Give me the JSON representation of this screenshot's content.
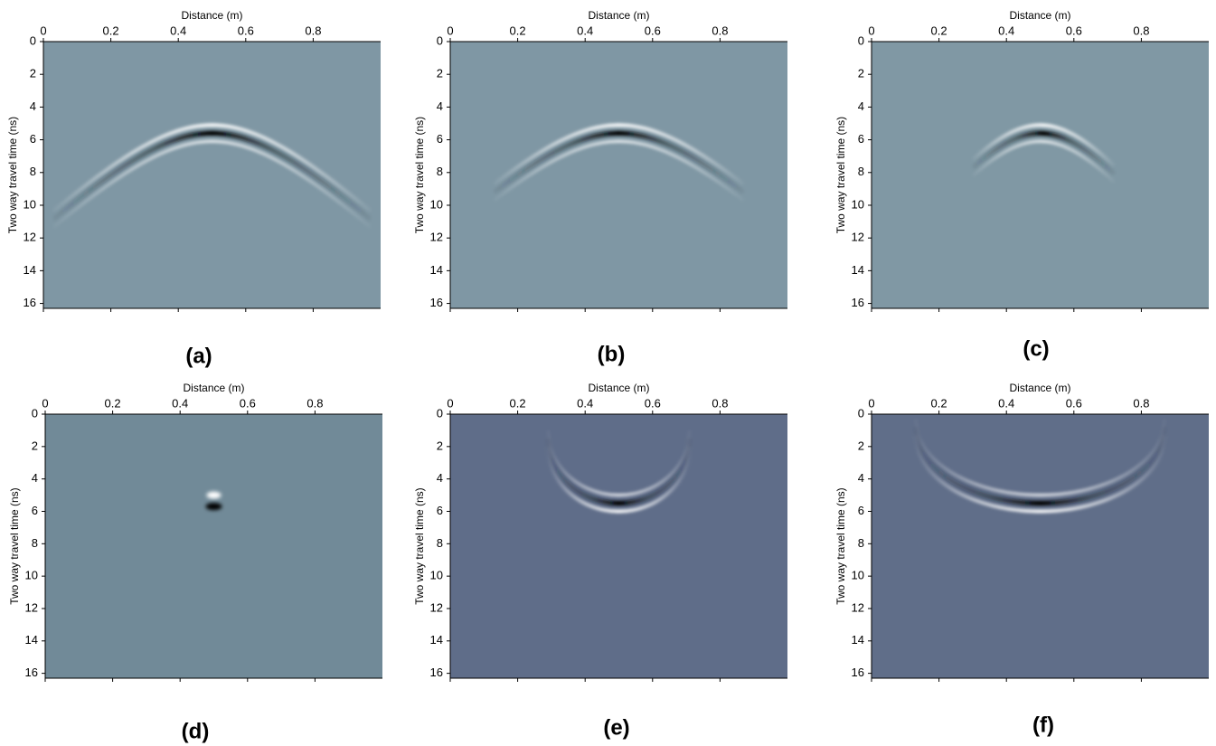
{
  "chart_data": [
    {
      "type": "image",
      "label": "(a)",
      "xlabel": "Distance (m)",
      "ylabel": "Two way travel time (ns)",
      "xlim": [
        0,
        1
      ],
      "ylim": [
        0,
        16.3
      ],
      "y_inverted": true,
      "xticks": [
        0,
        0.2,
        0.4,
        0.6,
        0.8
      ],
      "yticks": [
        0,
        2,
        4,
        6,
        8,
        10,
        12,
        14,
        16
      ],
      "color": "#7f97a4"
    },
    {
      "type": "image",
      "label": "(b)",
      "xlabel": "Distance (m)",
      "ylabel": "Two way travel time (ns)",
      "xlim": [
        0,
        1
      ],
      "ylim": [
        0,
        16.3
      ],
      "y_inverted": true,
      "xticks": [
        0,
        0.2,
        0.4,
        0.6,
        0.8
      ],
      "yticks": [
        0,
        2,
        4,
        6,
        8,
        10,
        12,
        14,
        16
      ],
      "color": "#7f97a4"
    },
    {
      "type": "image",
      "label": "(c)",
      "xlabel": "Distance (m)",
      "ylabel": "Two way travel time (ns)",
      "xlim": [
        0,
        1
      ],
      "ylim": [
        0,
        16.3
      ],
      "y_inverted": true,
      "xticks": [
        0,
        0.2,
        0.4,
        0.6,
        0.8
      ],
      "yticks": [
        0,
        2,
        4,
        6,
        8,
        10,
        12,
        14,
        16
      ],
      "color": "#8098a4"
    },
    {
      "type": "image",
      "label": "(d)",
      "xlabel": "Distance (m)",
      "ylabel": "Two way travel time (ns)",
      "xlim": [
        0,
        1
      ],
      "ylim": [
        0,
        16.3
      ],
      "y_inverted": true,
      "xticks": [
        0,
        0.2,
        0.4,
        0.6,
        0.8
      ],
      "yticks": [
        0,
        2,
        4,
        6,
        8,
        10,
        12,
        14,
        16
      ],
      "color": "#718a98"
    },
    {
      "type": "image",
      "label": "(e)",
      "xlabel": "Distance (m)",
      "ylabel": "Two way travel time (ns)",
      "xlim": [
        0,
        1
      ],
      "ylim": [
        0,
        16.3
      ],
      "y_inverted": true,
      "xticks": [
        0,
        0.2,
        0.4,
        0.6,
        0.8
      ],
      "yticks": [
        0,
        2,
        4,
        6,
        8,
        10,
        12,
        14,
        16
      ],
      "color": "#5f6d89"
    },
    {
      "type": "image",
      "label": "(f)",
      "xlabel": "Distance (m)",
      "ylabel": "Two way travel time (ns)",
      "xlim": [
        0,
        1
      ],
      "ylim": [
        0,
        16.3
      ],
      "y_inverted": true,
      "xticks": [
        0,
        0.2,
        0.4,
        0.6,
        0.8
      ],
      "yticks": [
        0,
        2,
        4,
        6,
        8,
        10,
        12,
        14,
        16
      ],
      "color": "#606e89"
    }
  ]
}
